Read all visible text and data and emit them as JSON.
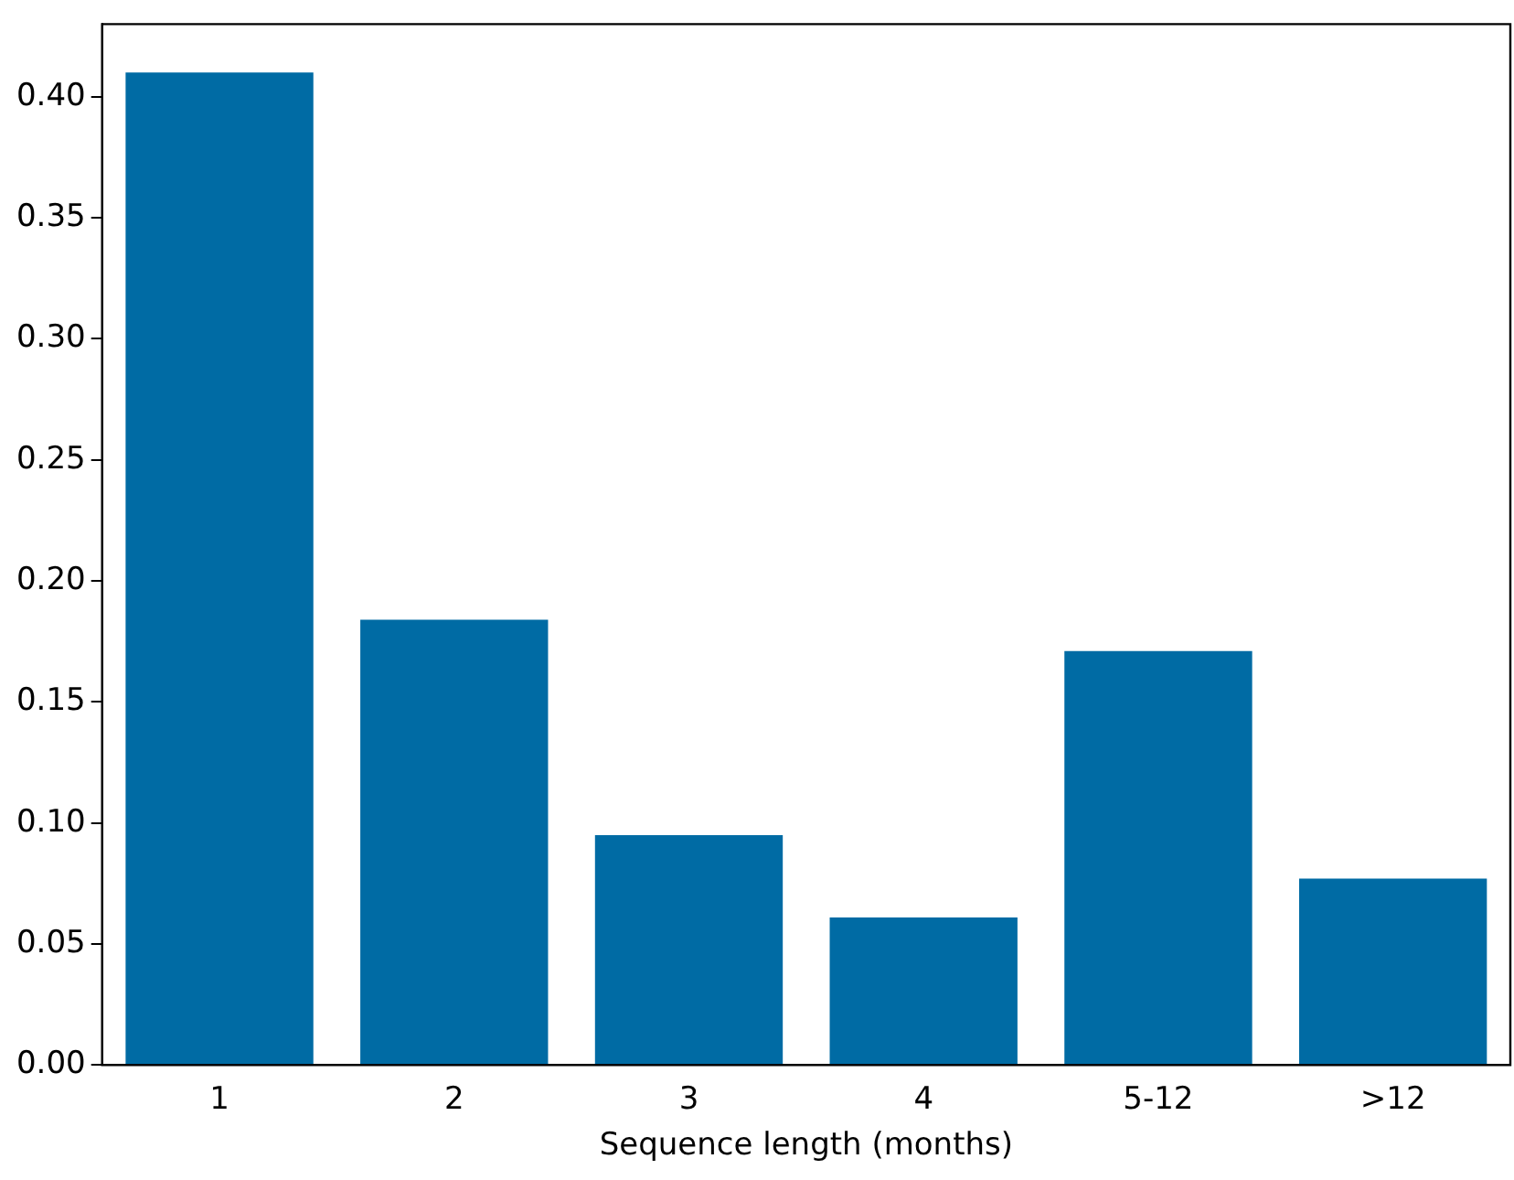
{
  "chart_data": {
    "type": "bar",
    "xlabel": "Sequence length (months)",
    "categories": [
      "1",
      "2",
      "3",
      "4",
      "5-12",
      ">12"
    ],
    "values": [
      0.41,
      0.184,
      0.095,
      0.061,
      0.171,
      0.077
    ],
    "color": "#006ba4",
    "ylim": [
      0,
      0.43
    ],
    "yticks": [
      {
        "value": 0,
        "label": "0.00"
      },
      {
        "value": 0.05,
        "label": "0.05"
      },
      {
        "value": 0.1,
        "label": "0.10"
      },
      {
        "value": 0.15,
        "label": "0.15"
      },
      {
        "value": 0.2,
        "label": "0.20"
      },
      {
        "value": 0.25,
        "label": "0.25"
      },
      {
        "value": 0.3,
        "label": "0.30"
      },
      {
        "value": 0.35,
        "label": "0.35"
      },
      {
        "value": 0.4,
        "label": "0.40"
      }
    ],
    "grid": false,
    "legend": false
  }
}
